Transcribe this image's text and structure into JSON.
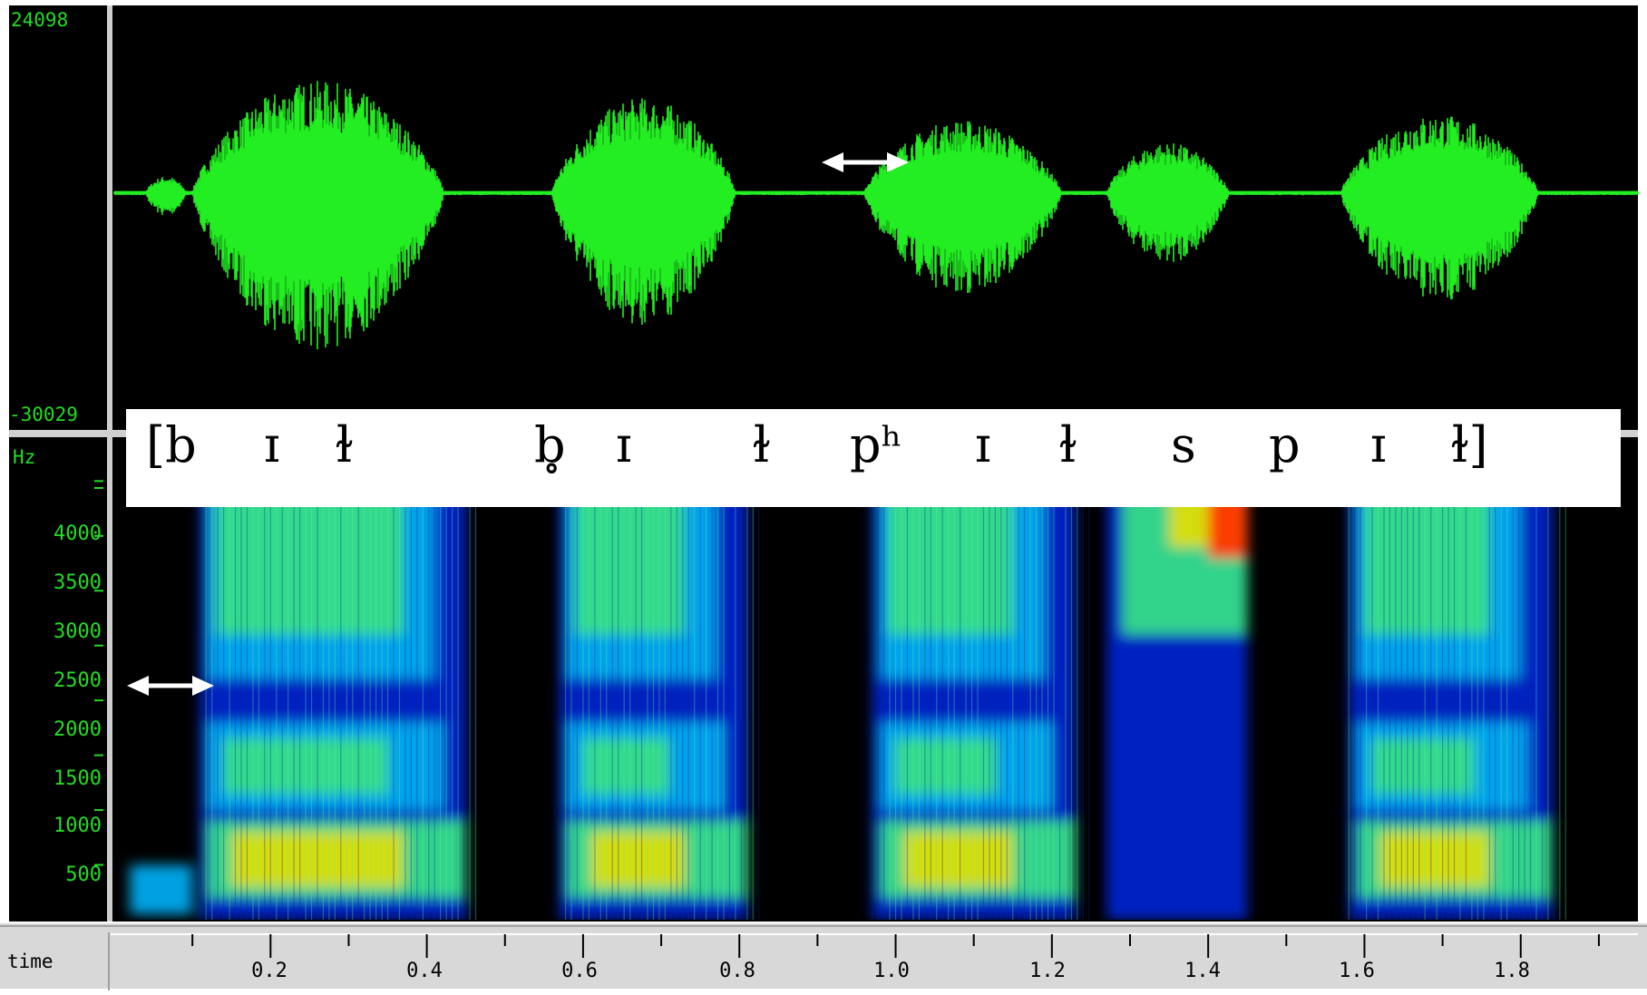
{
  "chart_data": [
    {
      "type": "line",
      "panel": "waveform",
      "y_max_label": "24098",
      "y_min_label": "-30029",
      "ylim": [
        -30029,
        24098
      ],
      "xlim": [
        0,
        1.95
      ],
      "line_color": "#22ee22",
      "background": "#000000",
      "segments": [
        {
          "start": 0.04,
          "end": 0.1,
          "peak": 3000
        },
        {
          "start": 0.1,
          "end": 0.47,
          "peak": 20000
        },
        {
          "start": 0.56,
          "end": 0.83,
          "peak": 17000
        },
        {
          "start": 0.96,
          "end": 1.25,
          "peak": 13000
        },
        {
          "start": 1.27,
          "end": 1.45,
          "peak": 9000
        },
        {
          "start": 1.57,
          "end": 1.86,
          "peak": 14000
        }
      ]
    },
    {
      "type": "heatmap",
      "panel": "spectrogram",
      "ylabel": "Hz",
      "yticks": [
        "4000",
        "3500",
        "3000",
        "2500",
        "2000",
        "1500",
        "1000",
        "500"
      ],
      "ytick_values": [
        4000,
        3500,
        3000,
        2500,
        2000,
        1500,
        1000,
        500
      ],
      "ylim": [
        0,
        4400
      ],
      "xlim": [
        0,
        1.95
      ],
      "colormap": [
        "#000000",
        "#0022cc",
        "#00aaee",
        "#33dd88",
        "#dddd00",
        "#ff3300"
      ],
      "background": "#000000"
    }
  ],
  "time_axis": {
    "label": "time",
    "ticks": [
      "0.2",
      "0.4",
      "0.6",
      "0.8",
      "1.0",
      "1.2",
      "1.4",
      "1.6",
      "1.8"
    ],
    "tick_values": [
      0.2,
      0.4,
      0.6,
      0.8,
      1.0,
      1.2,
      1.4,
      1.6,
      1.8
    ],
    "minor_ticks": [
      0.1,
      0.3,
      0.5,
      0.7,
      0.9,
      1.1,
      1.3,
      1.5,
      1.7,
      1.9
    ]
  },
  "transcription": {
    "symbols": [
      "[b",
      "ɪ",
      "ɫ",
      "b̥",
      "ɪ",
      "ɫ",
      "pʰ",
      "ɪ",
      "ɫ",
      "s",
      "p",
      "ɪ",
      "ɫ]"
    ]
  },
  "annotations": [
    {
      "name": "aspiration-arrow",
      "symbol": "double-headed arrow"
    },
    {
      "name": "prevoicing-arrow",
      "symbol": "double-headed arrow"
    }
  ],
  "colors": {
    "label_green": "#22dd22",
    "arrow": "#ffffff",
    "axis_bg": "#d8d8d8"
  }
}
